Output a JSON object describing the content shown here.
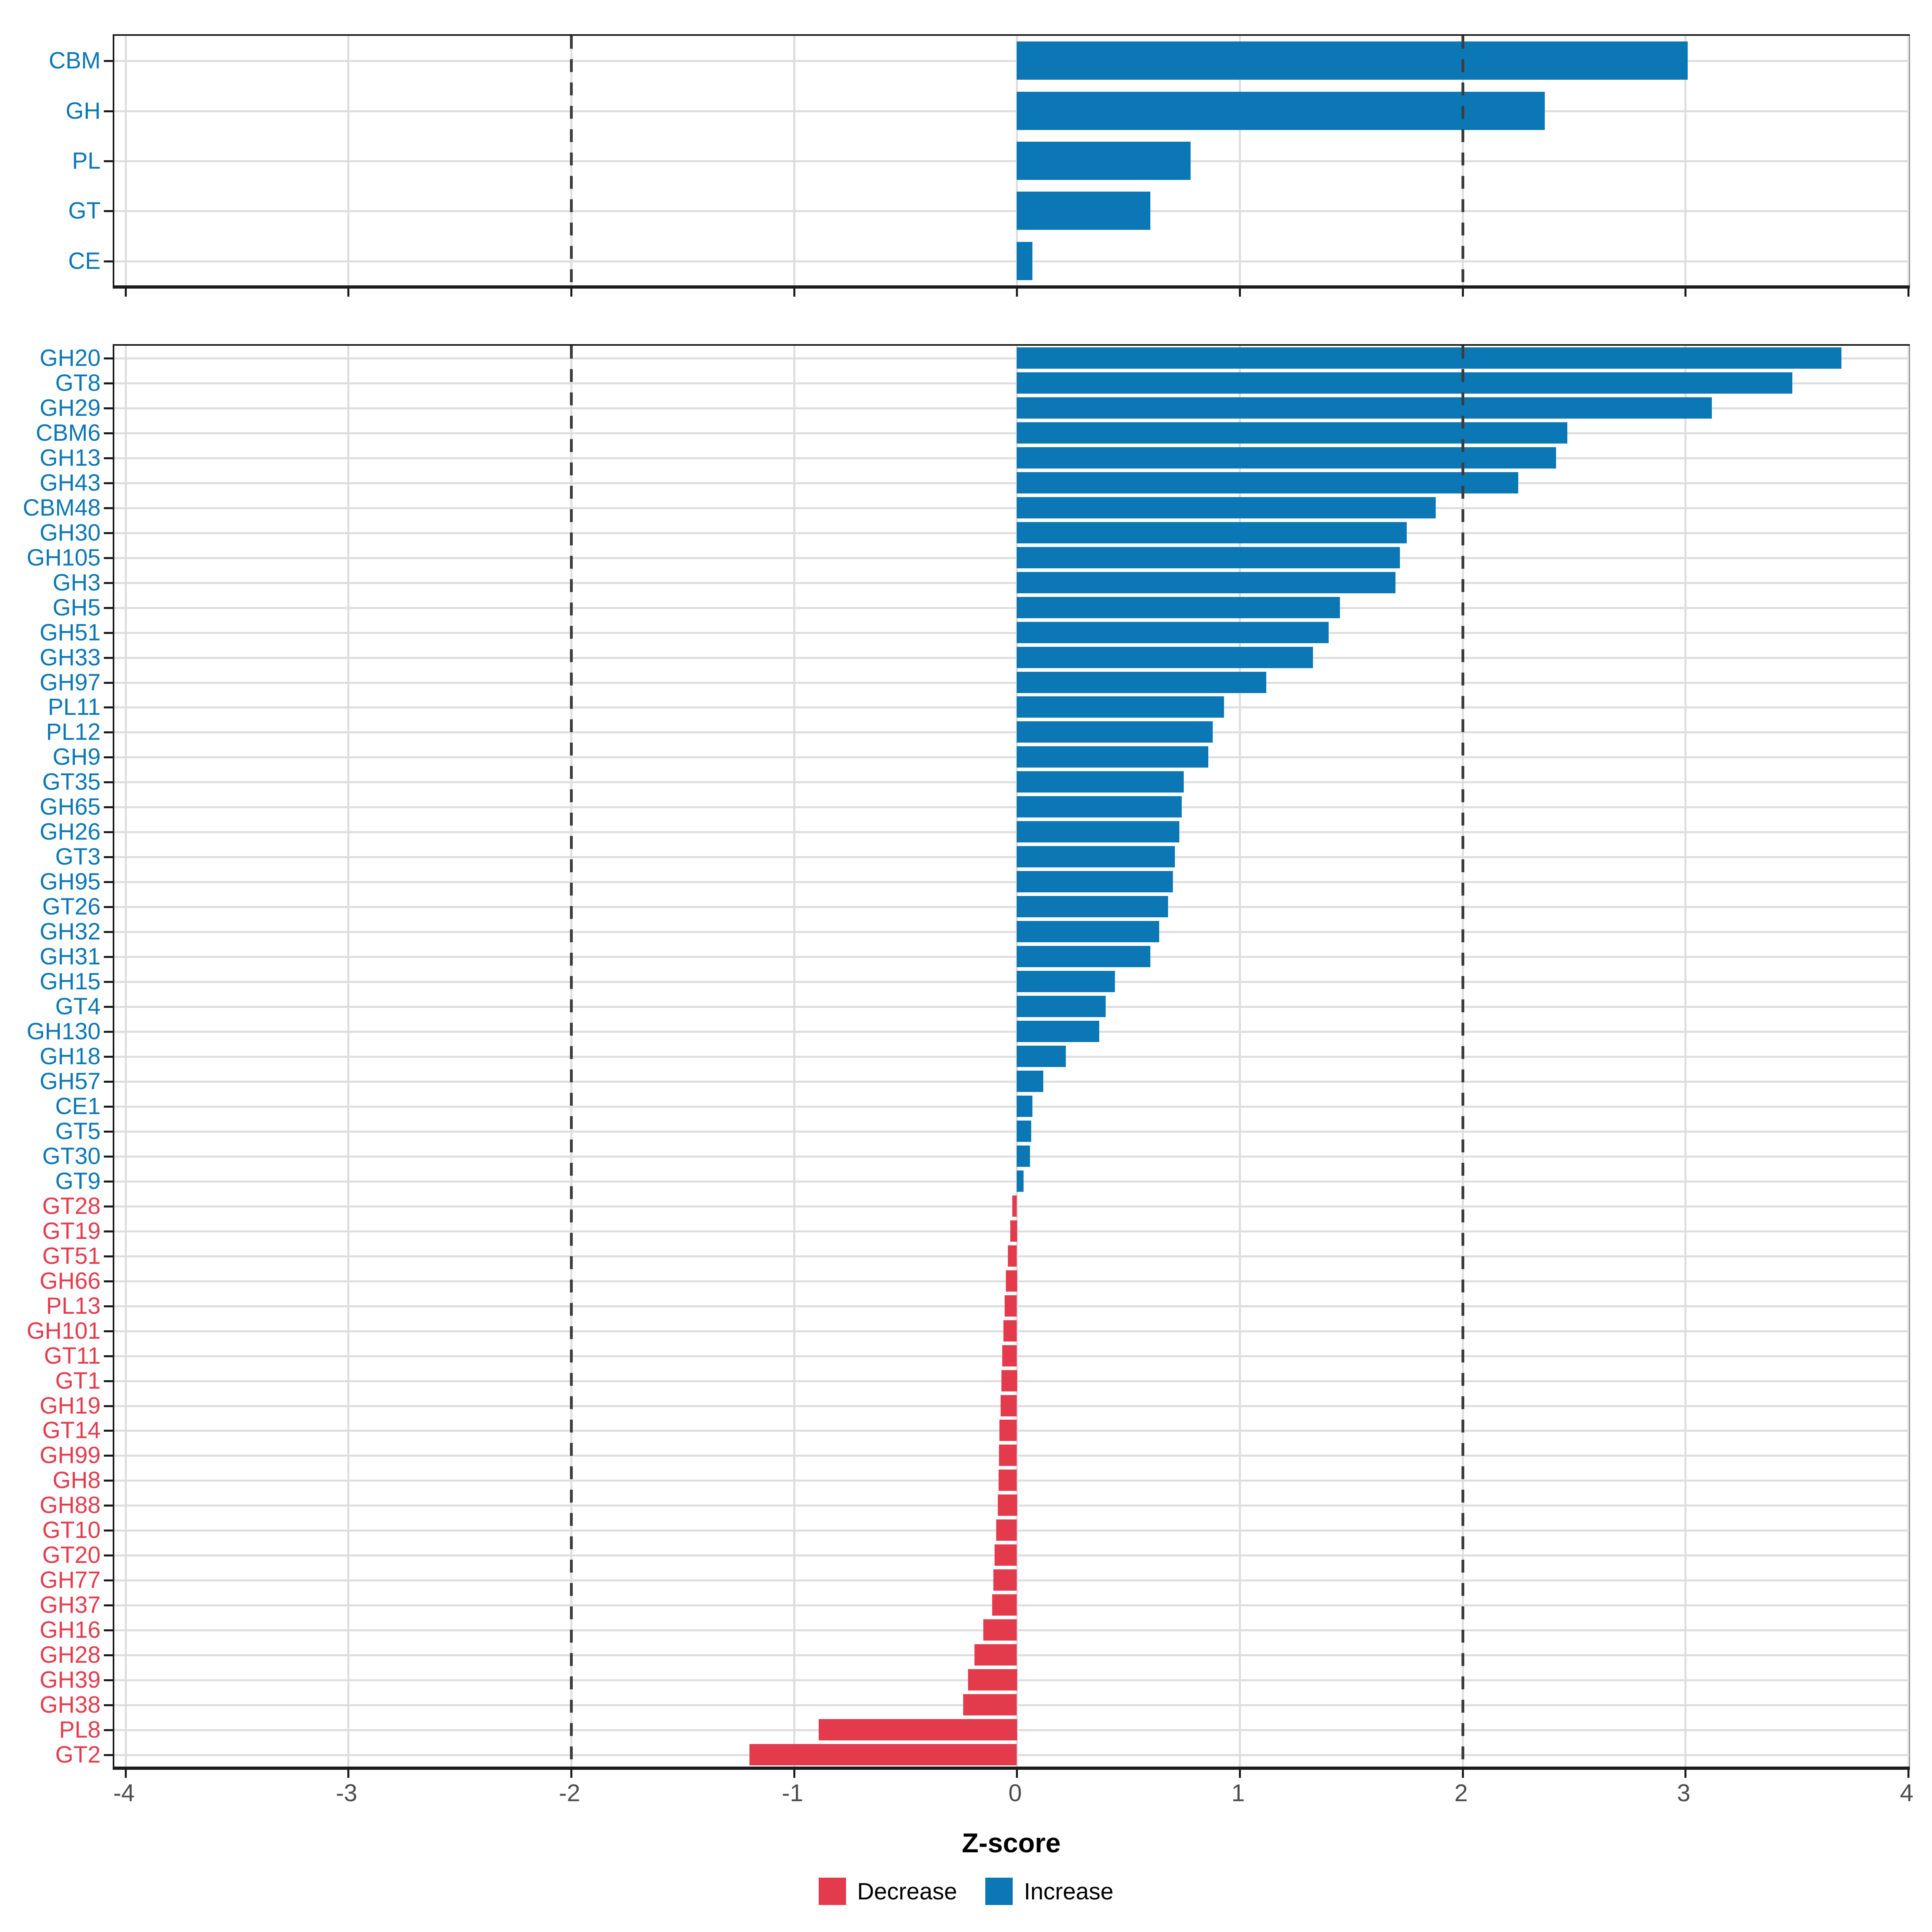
{
  "axis": {
    "xlabel": "Z-score",
    "xlim": [
      -4.05,
      4.0
    ],
    "ticks": [
      -4,
      -3,
      -2,
      -1,
      0,
      1,
      2,
      3,
      4
    ],
    "tick_labels": [
      "-4",
      "-3",
      "-2",
      "-1",
      "0",
      "1",
      "2",
      "3",
      "4"
    ],
    "dashed_at": [
      -2,
      2
    ]
  },
  "colors": {
    "increase": "#0b77b5",
    "decrease": "#e43b4c",
    "grid": "#dedede",
    "dash": "#3d3d3d",
    "axis_text": "#4d4d4d",
    "axis_line": "#1b1b1b",
    "background": "#ffffff"
  },
  "legend": {
    "items": [
      {
        "label": "Decrease",
        "key": "decrease"
      },
      {
        "label": "Increase",
        "key": "increase"
      }
    ]
  },
  "chart_data": [
    {
      "type": "bar",
      "panel": "cazyme-classes",
      "orientation": "horizontal",
      "bar_fraction": 0.76,
      "categories": [
        "CBM",
        "GH",
        "PL",
        "GT",
        "CE"
      ],
      "values": [
        3.01,
        2.37,
        0.78,
        0.6,
        0.07
      ]
    },
    {
      "type": "bar",
      "panel": "cazyme-families",
      "orientation": "horizontal",
      "bar_fraction": 0.85,
      "categories": [
        "GH20",
        "GT8",
        "GH29",
        "CBM6",
        "GH13",
        "GH43",
        "CBM48",
        "GH30",
        "GH105",
        "GH3",
        "GH5",
        "GH51",
        "GH33",
        "GH97",
        "PL11",
        "PL12",
        "GH9",
        "GT35",
        "GH65",
        "GH26",
        "GT3",
        "GH95",
        "GT26",
        "GH32",
        "GH31",
        "GH15",
        "GT4",
        "GH130",
        "GH18",
        "GH57",
        "CE1",
        "GT5",
        "GT30",
        "GT9",
        "GT28",
        "GT19",
        "GT51",
        "GH66",
        "PL13",
        "GH101",
        "GT11",
        "GT1",
        "GH19",
        "GT14",
        "GH99",
        "GH8",
        "GH88",
        "GT10",
        "GT20",
        "GH77",
        "GH37",
        "GH16",
        "GH28",
        "GH39",
        "GH38",
        "PL8",
        "GT2"
      ],
      "values": [
        3.7,
        3.48,
        3.12,
        2.47,
        2.42,
        2.25,
        1.88,
        1.75,
        1.72,
        1.7,
        1.45,
        1.4,
        1.33,
        1.12,
        0.93,
        0.88,
        0.86,
        0.75,
        0.74,
        0.73,
        0.71,
        0.7,
        0.68,
        0.64,
        0.6,
        0.44,
        0.4,
        0.37,
        0.22,
        0.12,
        0.07,
        0.065,
        0.06,
        0.03,
        -0.02,
        -0.03,
        -0.04,
        -0.05,
        -0.055,
        -0.06,
        -0.065,
        -0.07,
        -0.072,
        -0.078,
        -0.08,
        -0.082,
        -0.086,
        -0.092,
        -0.1,
        -0.105,
        -0.11,
        -0.15,
        -0.19,
        -0.22,
        -0.24,
        -0.89,
        -1.2
      ]
    }
  ]
}
